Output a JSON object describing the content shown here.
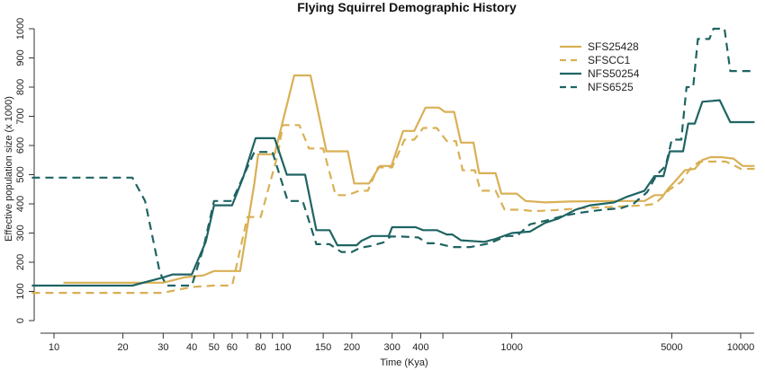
{
  "chart_data": {
    "type": "line",
    "title": "Flying Squirrel Demographic History",
    "xlabel": "Time (Kya)",
    "ylabel": "Effective population size (x 1000)",
    "x_scale": "log",
    "xlim": [
      8,
      11500
    ],
    "ylim": [
      0,
      1000
    ],
    "x_tick_labels": [
      "10",
      "20",
      "30",
      "40",
      "50",
      "60",
      "80",
      "100",
      "150",
      "200",
      "300",
      "400",
      "1000",
      "5000",
      "10000"
    ],
    "x_tick_values": [
      10,
      20,
      30,
      40,
      50,
      60,
      80,
      100,
      150,
      200,
      300,
      400,
      1000,
      5000,
      10000
    ],
    "x_minor_ticks": [
      70,
      90,
      500
    ],
    "y_ticks": [
      0,
      100,
      200,
      300,
      400,
      500,
      600,
      700,
      800,
      900,
      1000
    ],
    "grid": false,
    "legend_position": "top-right",
    "series": [
      {
        "name": "SFS25428",
        "color": "#d9b055",
        "dash": "solid",
        "points": [
          [
            11,
            130
          ],
          [
            24,
            130
          ],
          [
            30,
            130
          ],
          [
            37,
            148
          ],
          [
            45,
            155
          ],
          [
            50,
            170
          ],
          [
            65,
            170
          ],
          [
            75,
            470
          ],
          [
            78,
            570
          ],
          [
            92,
            570
          ],
          [
            112,
            840
          ],
          [
            132,
            840
          ],
          [
            155,
            580
          ],
          [
            192,
            580
          ],
          [
            205,
            470
          ],
          [
            238,
            470
          ],
          [
            265,
            530
          ],
          [
            298,
            530
          ],
          [
            335,
            650
          ],
          [
            375,
            650
          ],
          [
            420,
            730
          ],
          [
            480,
            730
          ],
          [
            510,
            715
          ],
          [
            560,
            715
          ],
          [
            600,
            610
          ],
          [
            680,
            610
          ],
          [
            720,
            505
          ],
          [
            850,
            505
          ],
          [
            900,
            435
          ],
          [
            1050,
            435
          ],
          [
            1150,
            410
          ],
          [
            1400,
            405
          ],
          [
            1800,
            408
          ],
          [
            2800,
            410
          ],
          [
            3800,
            410
          ],
          [
            4200,
            430
          ],
          [
            4600,
            430
          ],
          [
            4800,
            450
          ],
          [
            5200,
            480
          ],
          [
            5700,
            515
          ],
          [
            6300,
            520
          ],
          [
            6800,
            550
          ],
          [
            7400,
            560
          ],
          [
            8200,
            560
          ],
          [
            9300,
            555
          ],
          [
            10200,
            530
          ],
          [
            11500,
            530
          ]
        ]
      },
      {
        "name": "SFSCC1",
        "color": "#d9b055",
        "dash": "dashed",
        "points": [
          [
            8,
            95
          ],
          [
            20,
            95
          ],
          [
            30,
            95
          ],
          [
            32,
            100
          ],
          [
            40,
            115
          ],
          [
            50,
            120
          ],
          [
            60,
            120
          ],
          [
            70,
            355
          ],
          [
            80,
            355
          ],
          [
            95,
            570
          ],
          [
            100,
            670
          ],
          [
            118,
            670
          ],
          [
            130,
            590
          ],
          [
            150,
            590
          ],
          [
            170,
            430
          ],
          [
            192,
            430
          ],
          [
            215,
            445
          ],
          [
            235,
            445
          ],
          [
            260,
            525
          ],
          [
            300,
            525
          ],
          [
            340,
            620
          ],
          [
            375,
            620
          ],
          [
            410,
            660
          ],
          [
            470,
            660
          ],
          [
            520,
            615
          ],
          [
            570,
            615
          ],
          [
            610,
            515
          ],
          [
            690,
            515
          ],
          [
            730,
            445
          ],
          [
            850,
            445
          ],
          [
            930,
            380
          ],
          [
            1080,
            380
          ],
          [
            1250,
            375
          ],
          [
            1500,
            378
          ],
          [
            2000,
            385
          ],
          [
            2800,
            390
          ],
          [
            3800,
            395
          ],
          [
            4200,
            400
          ],
          [
            4500,
            420
          ],
          [
            4900,
            450
          ],
          [
            5500,
            475
          ],
          [
            6000,
            520
          ],
          [
            6600,
            545
          ],
          [
            7600,
            545
          ],
          [
            8600,
            545
          ],
          [
            9200,
            535
          ],
          [
            10000,
            520
          ],
          [
            11500,
            520
          ]
        ]
      },
      {
        "name": "NFS50254",
        "color": "#1f6463",
        "dash": "solid",
        "points": [
          [
            8,
            120
          ],
          [
            22,
            120
          ],
          [
            30,
            148
          ],
          [
            33,
            158
          ],
          [
            40,
            158
          ],
          [
            46,
            270
          ],
          [
            50,
            395
          ],
          [
            60,
            395
          ],
          [
            67,
            490
          ],
          [
            76,
            625
          ],
          [
            92,
            625
          ],
          [
            104,
            500
          ],
          [
            125,
            500
          ],
          [
            140,
            310
          ],
          [
            160,
            310
          ],
          [
            173,
            258
          ],
          [
            210,
            258
          ],
          [
            220,
            273
          ],
          [
            245,
            290
          ],
          [
            290,
            290
          ],
          [
            300,
            320
          ],
          [
            380,
            320
          ],
          [
            410,
            310
          ],
          [
            470,
            310
          ],
          [
            520,
            295
          ],
          [
            550,
            295
          ],
          [
            600,
            275
          ],
          [
            760,
            270
          ],
          [
            850,
            280
          ],
          [
            1000,
            300
          ],
          [
            1200,
            305
          ],
          [
            1400,
            335
          ],
          [
            1600,
            350
          ],
          [
            1900,
            380
          ],
          [
            2200,
            395
          ],
          [
            2800,
            405
          ],
          [
            3200,
            425
          ],
          [
            3800,
            445
          ],
          [
            4200,
            495
          ],
          [
            4600,
            495
          ],
          [
            4900,
            580
          ],
          [
            5600,
            580
          ],
          [
            5900,
            675
          ],
          [
            6300,
            675
          ],
          [
            6800,
            750
          ],
          [
            8100,
            755
          ],
          [
            9000,
            680
          ],
          [
            11500,
            680
          ]
        ]
      },
      {
        "name": "NFS6525",
        "color": "#1f6463",
        "dash": "dashed",
        "points": [
          [
            8,
            490
          ],
          [
            22,
            490
          ],
          [
            25,
            410
          ],
          [
            29,
            165
          ],
          [
            31,
            120
          ],
          [
            40,
            120
          ],
          [
            45,
            250
          ],
          [
            50,
            410
          ],
          [
            60,
            410
          ],
          [
            65,
            470
          ],
          [
            75,
            578
          ],
          [
            90,
            578
          ],
          [
            105,
            410
          ],
          [
            122,
            410
          ],
          [
            140,
            262
          ],
          [
            160,
            262
          ],
          [
            180,
            235
          ],
          [
            200,
            235
          ],
          [
            218,
            250
          ],
          [
            240,
            255
          ],
          [
            275,
            268
          ],
          [
            295,
            288
          ],
          [
            330,
            288
          ],
          [
            390,
            285
          ],
          [
            430,
            265
          ],
          [
            470,
            265
          ],
          [
            550,
            252
          ],
          [
            660,
            252
          ],
          [
            800,
            265
          ],
          [
            950,
            290
          ],
          [
            1050,
            290
          ],
          [
            1200,
            330
          ],
          [
            1450,
            345
          ],
          [
            1700,
            360
          ],
          [
            2000,
            370
          ],
          [
            2500,
            380
          ],
          [
            3000,
            385
          ],
          [
            3400,
            400
          ],
          [
            3900,
            440
          ],
          [
            4300,
            500
          ],
          [
            4700,
            530
          ],
          [
            5000,
            620
          ],
          [
            5500,
            620
          ],
          [
            5800,
            800
          ],
          [
            6200,
            800
          ],
          [
            6500,
            965
          ],
          [
            7300,
            965
          ],
          [
            7600,
            1000
          ],
          [
            8500,
            1000
          ],
          [
            9000,
            855
          ],
          [
            11500,
            855
          ]
        ]
      }
    ]
  }
}
